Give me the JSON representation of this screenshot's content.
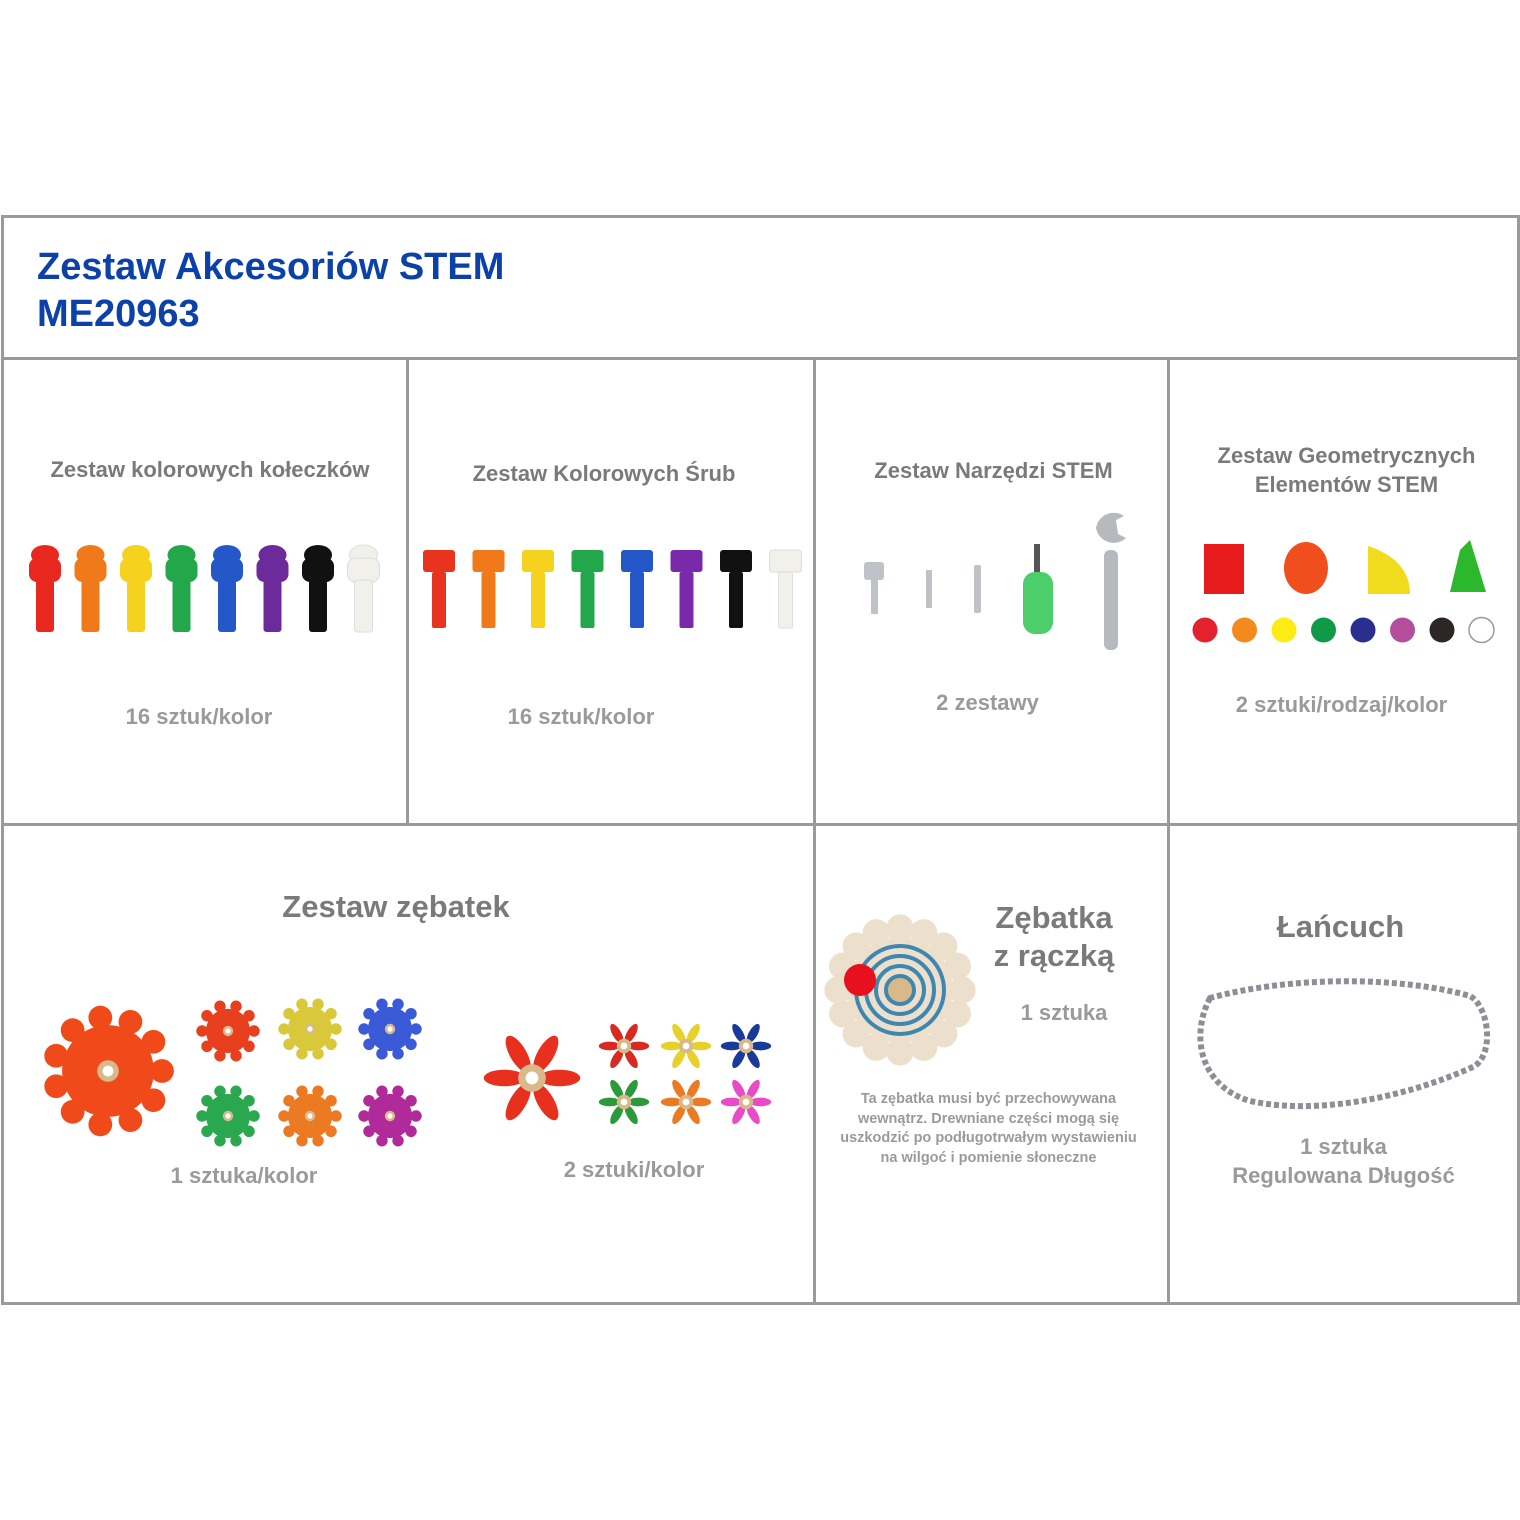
{
  "header": {
    "title_line1": "Zestaw Akcesoriów STEM",
    "title_line2": "ME20963"
  },
  "cells": {
    "pegs": {
      "title": "Zestaw kolorowych kołeczków",
      "qty": "16 sztuk/kolor",
      "colors": [
        "#e8281e",
        "#f07a1a",
        "#f5d21e",
        "#22a84a",
        "#2458c8",
        "#6c2a9a",
        "#111111",
        "#f2f0ea"
      ]
    },
    "screws": {
      "title": "Zestaw Kolorowych Śrub",
      "qty": "16 sztuk/kolor",
      "colors": [
        "#e8341e",
        "#f07a1a",
        "#f5d21e",
        "#22a84a",
        "#2458c8",
        "#7a2aa8",
        "#111111",
        "#f2f0ea"
      ]
    },
    "tools": {
      "title": "Zestaw Narzędzi STEM",
      "qty": "2 zestawy"
    },
    "geometric": {
      "title_line1": "Zestaw Geometrycznych",
      "title_line2": "Elementów STEM",
      "qty": "2 sztuki/rodzaj/kolor",
      "shape_colors": [
        "#e81c1c",
        "#f04e1c",
        "#f0dc1c",
        "#2cb82c"
      ],
      "dot_colors": [
        "#e3222e",
        "#f28a1e",
        "#fcec14",
        "#0f9a48",
        "#2a2f8f",
        "#b44d9c",
        "#2d2627",
        "#ffffff"
      ]
    },
    "gears": {
      "title": "Zestaw zębatek",
      "qty_large": "1 sztuka/kolor",
      "qty_small": "2 sztuki/kolor",
      "large_colors": [
        "#f04a1a",
        "#e8401e",
        "#d8c83a",
        "#3a5ad8",
        "#2aa850",
        "#ec7a22",
        "#b02a9a"
      ],
      "small_colors": [
        "#e8301e",
        "#d82a22",
        "#e8d02a",
        "#1a3a9a",
        "#2a9a3a",
        "#ec7a22",
        "#e84ac8"
      ]
    },
    "crank_gear": {
      "title_line1": "Zębatka",
      "title_line2": "z rączką",
      "qty": "1 sztuka",
      "note": [
        "Ta zębatka musi być przechowywana",
        "wewnątrz. Drewniane części mogą się",
        "uszkodzić po podługotrwałym wystawieniu",
        "na wilgoć i pomienie słoneczne"
      ]
    },
    "chain": {
      "title": "Łańcuch",
      "qty_line1": "1 sztuka",
      "qty_line2": "Regulowana Długość"
    }
  }
}
